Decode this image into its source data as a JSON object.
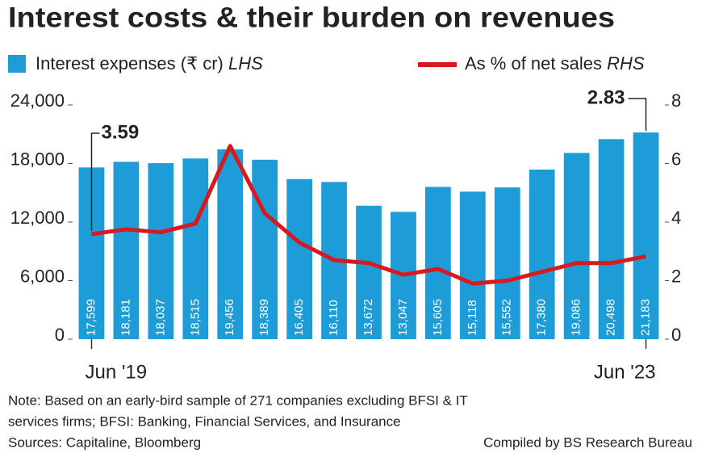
{
  "chart_data": {
    "type": "bar-line",
    "title": "Interest costs & their burden on revenues",
    "categories": [
      "Jun '19",
      null,
      null,
      null,
      null,
      null,
      null,
      null,
      null,
      null,
      null,
      null,
      null,
      null,
      null,
      null,
      "Jun '23"
    ],
    "series": [
      {
        "name": "Interest expenses (₹ cr)",
        "axis_note": "LHS",
        "type": "bar",
        "color": "#1e9cd7",
        "values": [
          17599,
          18181,
          18037,
          18515,
          19456,
          18389,
          16405,
          16110,
          13672,
          13047,
          15605,
          15118,
          15552,
          17380,
          19086,
          20498,
          21183
        ],
        "value_labels": [
          "17,599",
          "18,181",
          "18,037",
          "18,515",
          "19,456",
          "18,389",
          "16,405",
          "16,110",
          "13,672",
          "13,047",
          "15,605",
          "15,118",
          "15,552",
          "17,380",
          "19,086",
          "20,498",
          "21,183"
        ]
      },
      {
        "name": "As % of net sales",
        "axis_note": "RHS",
        "type": "line",
        "axis": "y2",
        "color": "#d71920",
        "values": [
          3.59,
          3.75,
          3.65,
          3.95,
          6.6,
          4.3,
          3.3,
          2.7,
          2.6,
          2.2,
          2.4,
          1.9,
          2.0,
          2.3,
          2.6,
          2.6,
          2.83
        ]
      }
    ],
    "ylim": [
      0,
      24000
    ],
    "yticks": [
      0,
      {
        "value": 6000,
        "label": "6,000"
      },
      {
        "value": 12000,
        "label": "12,000"
      },
      {
        "value": 18000,
        "label": "18,000"
      },
      {
        "value": 24000,
        "label": "24,000"
      }
    ],
    "y2lim": [
      0,
      8
    ],
    "y2ticks": [
      0,
      2,
      4,
      6,
      8
    ],
    "grid": false,
    "notes": [
      "Note: Based on an early-bird sample of 271 companies excluding BFSI & IT",
      "services firms; BFSI: Banking, Financial Services, and Insurance",
      "Sources: Capitaline, Bloomberg"
    ],
    "credit": "Compiled by BS Research Bureau"
  }
}
